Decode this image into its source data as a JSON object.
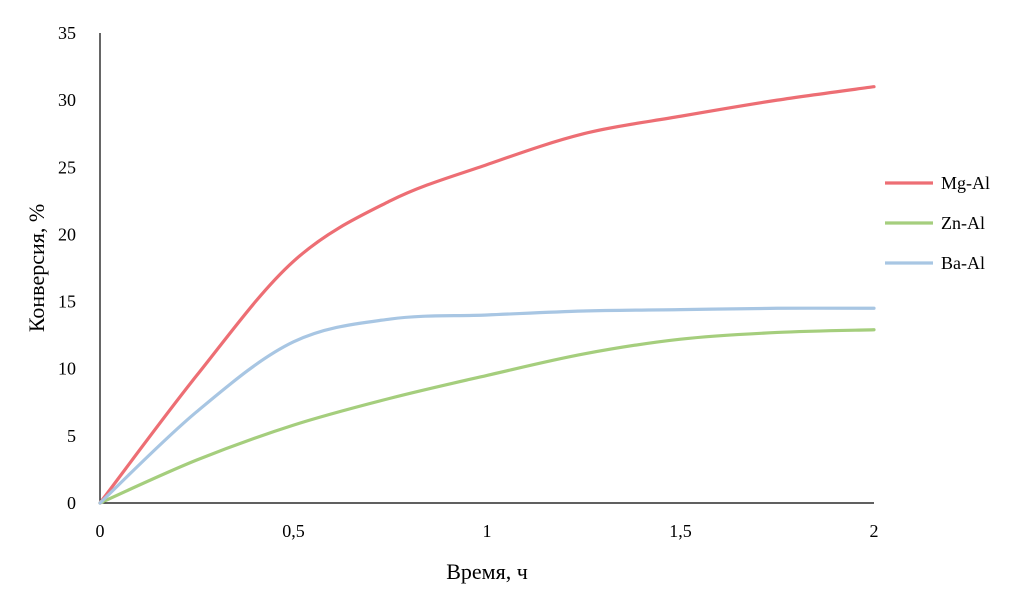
{
  "chart_data": {
    "type": "line",
    "xlabel": "Время, ч",
    "ylabel": "Конверсия, %",
    "xlim": [
      0,
      2
    ],
    "ylim": [
      0,
      35
    ],
    "x_ticks": [
      0,
      0.5,
      1,
      1.5,
      2
    ],
    "x_tick_labels": [
      "0",
      "0,5",
      "1",
      "1,5",
      "2"
    ],
    "y_ticks": [
      0,
      5,
      10,
      15,
      20,
      25,
      30,
      35
    ],
    "y_tick_labels": [
      "0",
      "5",
      "10",
      "15",
      "20",
      "25",
      "30",
      "35"
    ],
    "grid": false,
    "legend_position": "right",
    "series": [
      {
        "name": "Mg-Al",
        "color": "#ED6E74",
        "x": [
          0,
          0.25,
          0.5,
          0.75,
          1,
          1.25,
          1.5,
          1.75,
          2
        ],
        "y": [
          0,
          9.5,
          18,
          22.5,
          25.2,
          27.5,
          28.8,
          30,
          31
        ]
      },
      {
        "name": "Zn-Al",
        "color": "#A5CE7D",
        "x": [
          0,
          0.25,
          0.5,
          0.75,
          1,
          1.25,
          1.5,
          1.75,
          2
        ],
        "y": [
          0,
          3.2,
          5.8,
          7.8,
          9.5,
          11.1,
          12.2,
          12.7,
          12.9
        ]
      },
      {
        "name": "Ba-Al",
        "color": "#A8C6E3",
        "x": [
          0,
          0.25,
          0.5,
          0.75,
          1,
          1.25,
          1.5,
          1.75,
          2
        ],
        "y": [
          0,
          6.8,
          12,
          13.7,
          14,
          14.3,
          14.4,
          14.5,
          14.5
        ]
      }
    ]
  }
}
